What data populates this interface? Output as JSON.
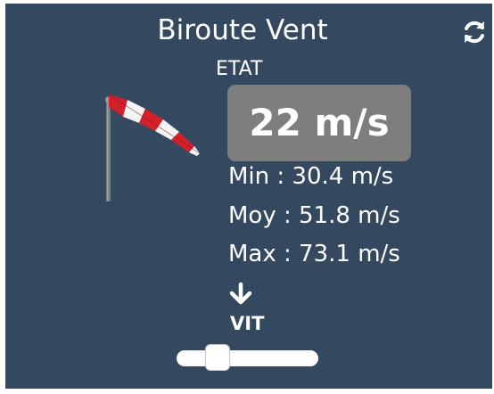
{
  "widget": {
    "title": "Biroute Vent",
    "state_label": "ETAT",
    "current_value": "22 m/s",
    "stats": {
      "min": "Min : 30.4 m/s",
      "moy": "Moy : 51.8 m/s",
      "max": "Max : 73.1 m/s"
    },
    "direction_icon": "arrow-down-icon",
    "refresh_icon": "refresh-icon",
    "control_label": "VIT",
    "slider_level": 0.24
  },
  "colors": {
    "background": "#344860",
    "value_box": "#7e7e7e",
    "text": "#ffffff",
    "windsock_red": "#d4202a",
    "windsock_white": "#f4f4f4"
  }
}
